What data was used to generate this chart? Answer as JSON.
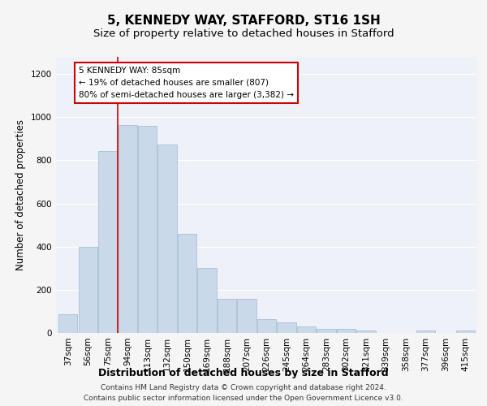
{
  "title": "5, KENNEDY WAY, STAFFORD, ST16 1SH",
  "subtitle": "Size of property relative to detached houses in Stafford",
  "xlabel": "Distribution of detached houses by size in Stafford",
  "ylabel": "Number of detached properties",
  "categories": [
    "37sqm",
    "56sqm",
    "75sqm",
    "94sqm",
    "113sqm",
    "132sqm",
    "150sqm",
    "169sqm",
    "188sqm",
    "207sqm",
    "226sqm",
    "245sqm",
    "264sqm",
    "283sqm",
    "302sqm",
    "321sqm",
    "339sqm",
    "358sqm",
    "377sqm",
    "396sqm",
    "415sqm"
  ],
  "values": [
    88,
    400,
    845,
    965,
    960,
    875,
    460,
    300,
    160,
    160,
    65,
    50,
    30,
    20,
    20,
    10,
    0,
    0,
    10,
    0,
    10
  ],
  "bar_color": "#c9d9ea",
  "bar_edge_color": "#a0b8d0",
  "red_line_x": 2.5,
  "annotation_text": "5 KENNEDY WAY: 85sqm\n← 19% of detached houses are smaller (807)\n80% of semi-detached houses are larger (3,382) →",
  "annotation_box_color": "#ffffff",
  "annotation_box_edge_color": "#cc0000",
  "ylim": [
    0,
    1280
  ],
  "yticks": [
    0,
    200,
    400,
    600,
    800,
    1000,
    1200
  ],
  "footer_line1": "Contains HM Land Registry data © Crown copyright and database right 2024.",
  "footer_line2": "Contains public sector information licensed under the Open Government Licence v3.0.",
  "bg_color": "#eef2f8",
  "grid_color": "#ffffff",
  "title_fontsize": 11,
  "subtitle_fontsize": 9.5,
  "axis_label_fontsize": 8.5,
  "tick_fontsize": 7.5,
  "annotation_fontsize": 7.5,
  "footer_fontsize": 6.5
}
